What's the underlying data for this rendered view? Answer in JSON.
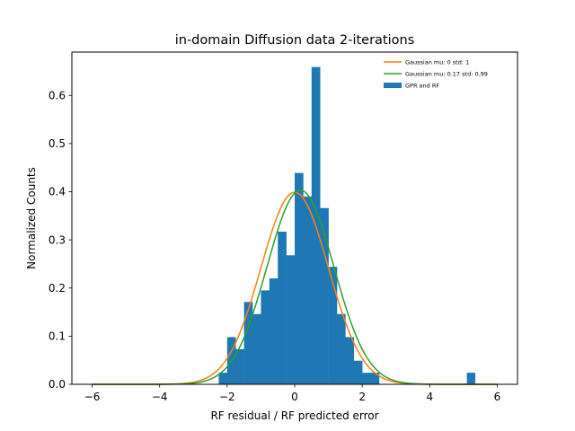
{
  "chart_data": {
    "type": "bar",
    "title": "in-domain Diffusion data 2-iterations",
    "xlabel": "RF residual / RF predicted error",
    "ylabel": "Normalized Counts",
    "xlim": [
      -6.6,
      6.6
    ],
    "ylim": [
      0,
      0.69
    ],
    "xticks": [
      -6,
      -4,
      -2,
      0,
      2,
      4,
      6
    ],
    "yticks": [
      0.0,
      0.1,
      0.2,
      0.3,
      0.4,
      0.5,
      0.6
    ],
    "grid": false,
    "legend_placement": "upper right",
    "histogram": {
      "name": "GPR and RF",
      "color": "#1f77b4",
      "bin_edges": [
        -2.25,
        -2.0,
        -1.75,
        -1.5,
        -1.25,
        -1.0,
        -0.75,
        -0.5,
        -0.25,
        0.0,
        0.25,
        0.5,
        0.75,
        1.0,
        1.25,
        1.5,
        1.75,
        2.0,
        2.25,
        2.5
      ],
      "heights": [
        0.024,
        0.098,
        0.073,
        0.171,
        0.146,
        0.195,
        0.22,
        0.317,
        0.268,
        0.439,
        0.39,
        0.659,
        0.366,
        0.244,
        0.146,
        0.098,
        0.049,
        0.024,
        0.024
      ],
      "outlier_bin": {
        "x_start": 5.1,
        "x_end": 5.35,
        "height": 0.024
      }
    },
    "series": [
      {
        "name": "Gaussian mu: 0 std: 1",
        "type": "line",
        "mu": 0,
        "std": 1,
        "color": "#ff7f0e",
        "x_range": [
          -6,
          6
        ]
      },
      {
        "name": "Gaussian mu: 0.17 std: 0.99",
        "type": "line",
        "mu": 0.17,
        "std": 0.99,
        "color": "#2ca02c",
        "x_range": [
          -6,
          6
        ]
      }
    ],
    "legend": [
      "Gaussian mu: 0 std: 1",
      "Gaussian mu: 0.17 std: 0.99",
      "GPR and RF"
    ]
  }
}
